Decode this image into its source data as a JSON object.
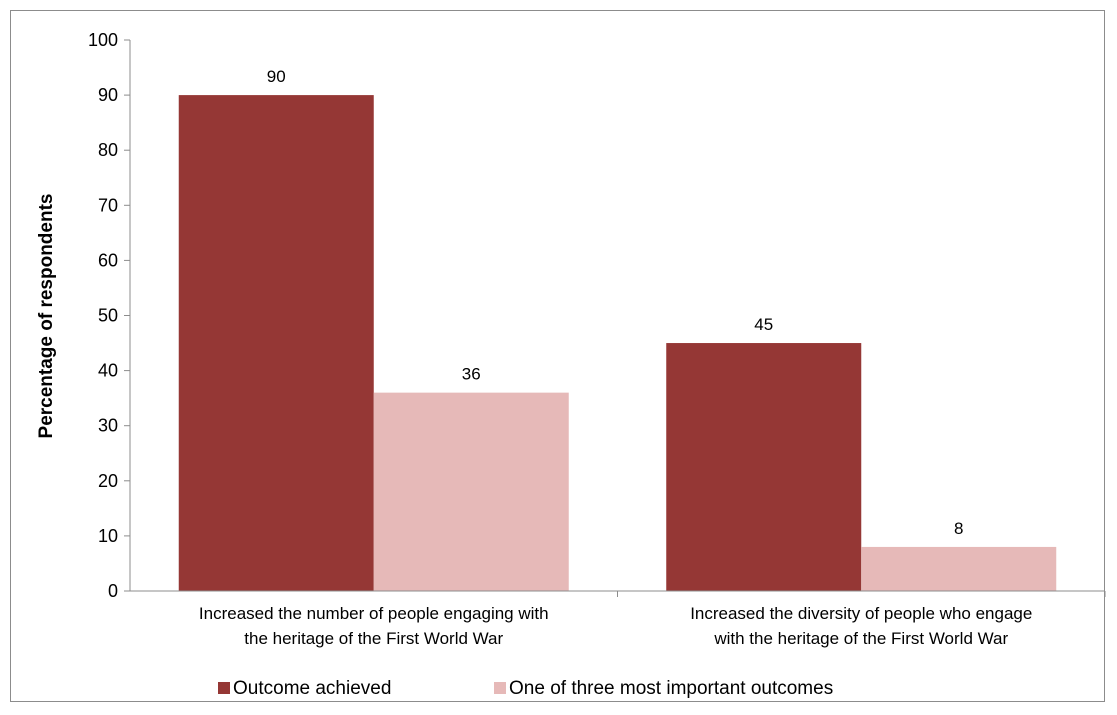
{
  "chart_data": {
    "type": "bar",
    "categories": [
      [
        "Increased the number of people engaging with",
        "the heritage of the First World War"
      ],
      [
        "Increased the diversity of people who engage",
        "with the heritage of the First World War"
      ]
    ],
    "series": [
      {
        "name": "Outcome achieved",
        "values": [
          90,
          45
        ],
        "color": "#953735"
      },
      {
        "name": "One of three most important outcomes",
        "values": [
          36,
          8
        ],
        "color": "#e6b9b8"
      }
    ],
    "ylabel": "Percentage of respondents",
    "ylim": [
      0,
      100
    ],
    "yticks": [
      0,
      10,
      20,
      30,
      40,
      50,
      60,
      70,
      80,
      90,
      100
    ],
    "grid": false,
    "legend_position": "bottom",
    "data_labels": [
      [
        "90",
        "45"
      ],
      [
        "36",
        "8"
      ]
    ]
  }
}
